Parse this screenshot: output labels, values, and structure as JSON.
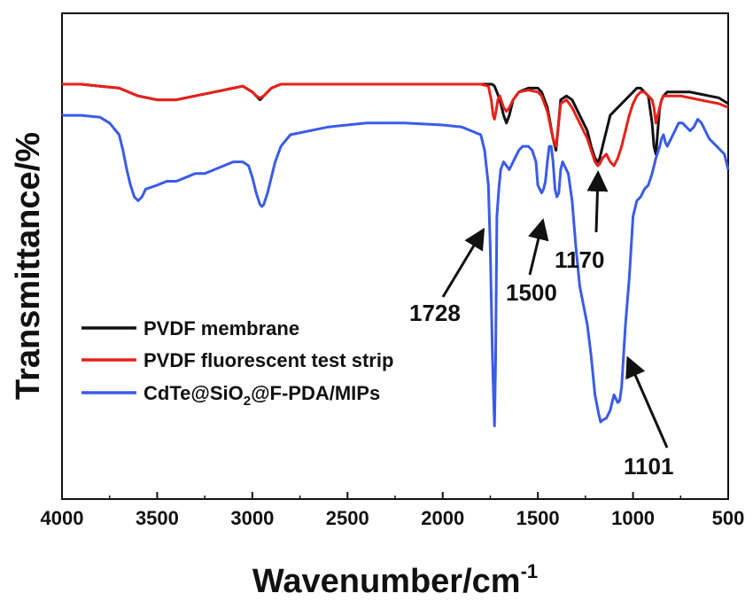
{
  "chart_data": {
    "type": "line",
    "title": "",
    "xlabel": "Wavenumber/cm",
    "xlabel_superscript": "-1",
    "ylabel": "Transmittance/%",
    "xlim": [
      4000,
      500
    ],
    "ylim": [
      0,
      100
    ],
    "x_reversed": true,
    "y_ticks_shown": false,
    "x_ticks": [
      4000,
      3500,
      3000,
      2500,
      2000,
      1500,
      1000,
      500
    ],
    "grid": false,
    "legend_position": "middle-left",
    "series": [
      {
        "name": "PVDF membrane",
        "color": "#111111",
        "x": [
          4000,
          3900,
          3800,
          3700,
          3600,
          3500,
          3400,
          3300,
          3200,
          3100,
          3050,
          3000,
          2980,
          2960,
          2940,
          2920,
          2900,
          2850,
          2800,
          2600,
          2400,
          2200,
          2000,
          1900,
          1800,
          1760,
          1740,
          1728,
          1715,
          1700,
          1680,
          1665,
          1650,
          1630,
          1600,
          1550,
          1500,
          1480,
          1450,
          1420,
          1405,
          1395,
          1380,
          1350,
          1320,
          1300,
          1280,
          1260,
          1240,
          1220,
          1200,
          1185,
          1175,
          1160,
          1140,
          1120,
          1100,
          1080,
          1060,
          1040,
          1020,
          1000,
          980,
          960,
          940,
          920,
          900,
          890,
          880,
          870,
          860,
          850,
          840,
          820,
          800,
          750,
          700,
          650,
          600,
          550,
          500
        ],
        "values": [
          92,
          92,
          91.5,
          91,
          89,
          88,
          88,
          89,
          90,
          91,
          91.5,
          90,
          89,
          88,
          89,
          90,
          91,
          92,
          92,
          92,
          92,
          92,
          92,
          92,
          92,
          92,
          92,
          91.5,
          90,
          88,
          84,
          82,
          84,
          88,
          90,
          91,
          91,
          90,
          86,
          78,
          75,
          80,
          88,
          89,
          88,
          86,
          84,
          82,
          80,
          76,
          73,
          72,
          73,
          76,
          80,
          84,
          85,
          86,
          87,
          88,
          89,
          90,
          91,
          91,
          90,
          89,
          82,
          76,
          74,
          80,
          86,
          88,
          89,
          90,
          90,
          90,
          90,
          89.5,
          89,
          88.5,
          87
        ]
      },
      {
        "name": "PVDF fluorescent test strip",
        "color": "#e8201a",
        "x": [
          4000,
          3900,
          3800,
          3700,
          3600,
          3500,
          3400,
          3300,
          3200,
          3100,
          3050,
          3000,
          2980,
          2960,
          2940,
          2920,
          2900,
          2850,
          2800,
          2600,
          2400,
          2200,
          2000,
          1900,
          1800,
          1760,
          1745,
          1735,
          1728,
          1720,
          1710,
          1700,
          1680,
          1665,
          1650,
          1630,
          1600,
          1550,
          1500,
          1480,
          1450,
          1420,
          1405,
          1395,
          1380,
          1350,
          1320,
          1300,
          1280,
          1260,
          1240,
          1220,
          1200,
          1185,
          1175,
          1160,
          1140,
          1120,
          1100,
          1080,
          1060,
          1040,
          1020,
          1000,
          980,
          960,
          940,
          920,
          900,
          890,
          880,
          870,
          860,
          850,
          840,
          820,
          800,
          750,
          700,
          650,
          600,
          550,
          500
        ],
        "values": [
          92,
          92,
          91.5,
          91,
          89,
          88,
          88,
          89,
          90,
          91,
          91.5,
          90,
          89,
          88.5,
          89,
          90,
          91,
          92,
          92,
          92,
          92,
          92,
          92,
          92,
          92,
          91.5,
          88,
          84,
          83,
          85,
          88,
          89,
          86,
          85,
          86,
          88,
          90,
          90.5,
          90,
          89,
          85,
          78,
          76,
          80,
          87,
          88,
          86,
          84,
          82,
          80,
          78,
          75,
          72,
          71,
          71.5,
          73,
          74,
          72,
          71,
          73,
          76,
          80,
          84,
          87,
          89,
          90,
          90,
          89,
          88,
          86,
          82,
          84,
          86,
          88,
          89,
          89,
          89,
          89,
          88.5,
          88,
          87.5,
          87,
          86
        ]
      },
      {
        "name": "CdTe@SiO2@F-PDA/MIPs",
        "color": "#3b5be8",
        "x": [
          4000,
          3900,
          3800,
          3750,
          3700,
          3680,
          3660,
          3640,
          3620,
          3600,
          3580,
          3560,
          3500,
          3450,
          3400,
          3350,
          3300,
          3250,
          3200,
          3150,
          3100,
          3050,
          3020,
          3000,
          2980,
          2960,
          2950,
          2940,
          2920,
          2900,
          2880,
          2850,
          2800,
          2600,
          2400,
          2200,
          2000,
          1900,
          1850,
          1800,
          1780,
          1760,
          1750,
          1740,
          1735,
          1728,
          1722,
          1715,
          1705,
          1695,
          1680,
          1665,
          1650,
          1630,
          1610,
          1600,
          1580,
          1560,
          1550,
          1530,
          1510,
          1500,
          1480,
          1470,
          1460,
          1450,
          1440,
          1430,
          1420,
          1410,
          1400,
          1390,
          1380,
          1370,
          1360,
          1340,
          1320,
          1300,
          1280,
          1260,
          1240,
          1220,
          1200,
          1180,
          1170,
          1160,
          1140,
          1120,
          1110,
          1100,
          1090,
          1080,
          1070,
          1060,
          1040,
          1020,
          1000,
          980,
          960,
          940,
          920,
          900,
          880,
          860,
          850,
          840,
          830,
          820,
          800,
          780,
          760,
          740,
          720,
          700,
          680,
          660,
          640,
          620,
          600,
          560,
          520,
          500
        ],
        "values": [
          84,
          84,
          83.5,
          82,
          79,
          75,
          70,
          66,
          63,
          62,
          63,
          65,
          66,
          67,
          67,
          68,
          69,
          69,
          70,
          71,
          72,
          72,
          71,
          68,
          64,
          61,
          60.5,
          61,
          64,
          68,
          72,
          76,
          79,
          81,
          82,
          82,
          81.5,
          81,
          80,
          79,
          75,
          66,
          50,
          25,
          15,
          4,
          20,
          58,
          65,
          70,
          72,
          71,
          70,
          72,
          74,
          75,
          76,
          76,
          76,
          75,
          72,
          66,
          64,
          65,
          67,
          72,
          76,
          76,
          72,
          65,
          63,
          64,
          70,
          72,
          71,
          69,
          62,
          50,
          40,
          35,
          30,
          22,
          12,
          7,
          5,
          5.5,
          6,
          8,
          10,
          12,
          11,
          10,
          10.5,
          14,
          30,
          42,
          58,
          62,
          63,
          65,
          66,
          69,
          73,
          76,
          78,
          79,
          77,
          76,
          78,
          80,
          82,
          82,
          81,
          80,
          81,
          83,
          82,
          80,
          78,
          76,
          74,
          70
        ]
      }
    ],
    "annotations": [
      {
        "label": "1728",
        "x": 1728
      },
      {
        "label": "1500",
        "x": 1475
      },
      {
        "label": "1170",
        "x": 1170
      },
      {
        "label": "1101",
        "x": 1040
      }
    ]
  }
}
